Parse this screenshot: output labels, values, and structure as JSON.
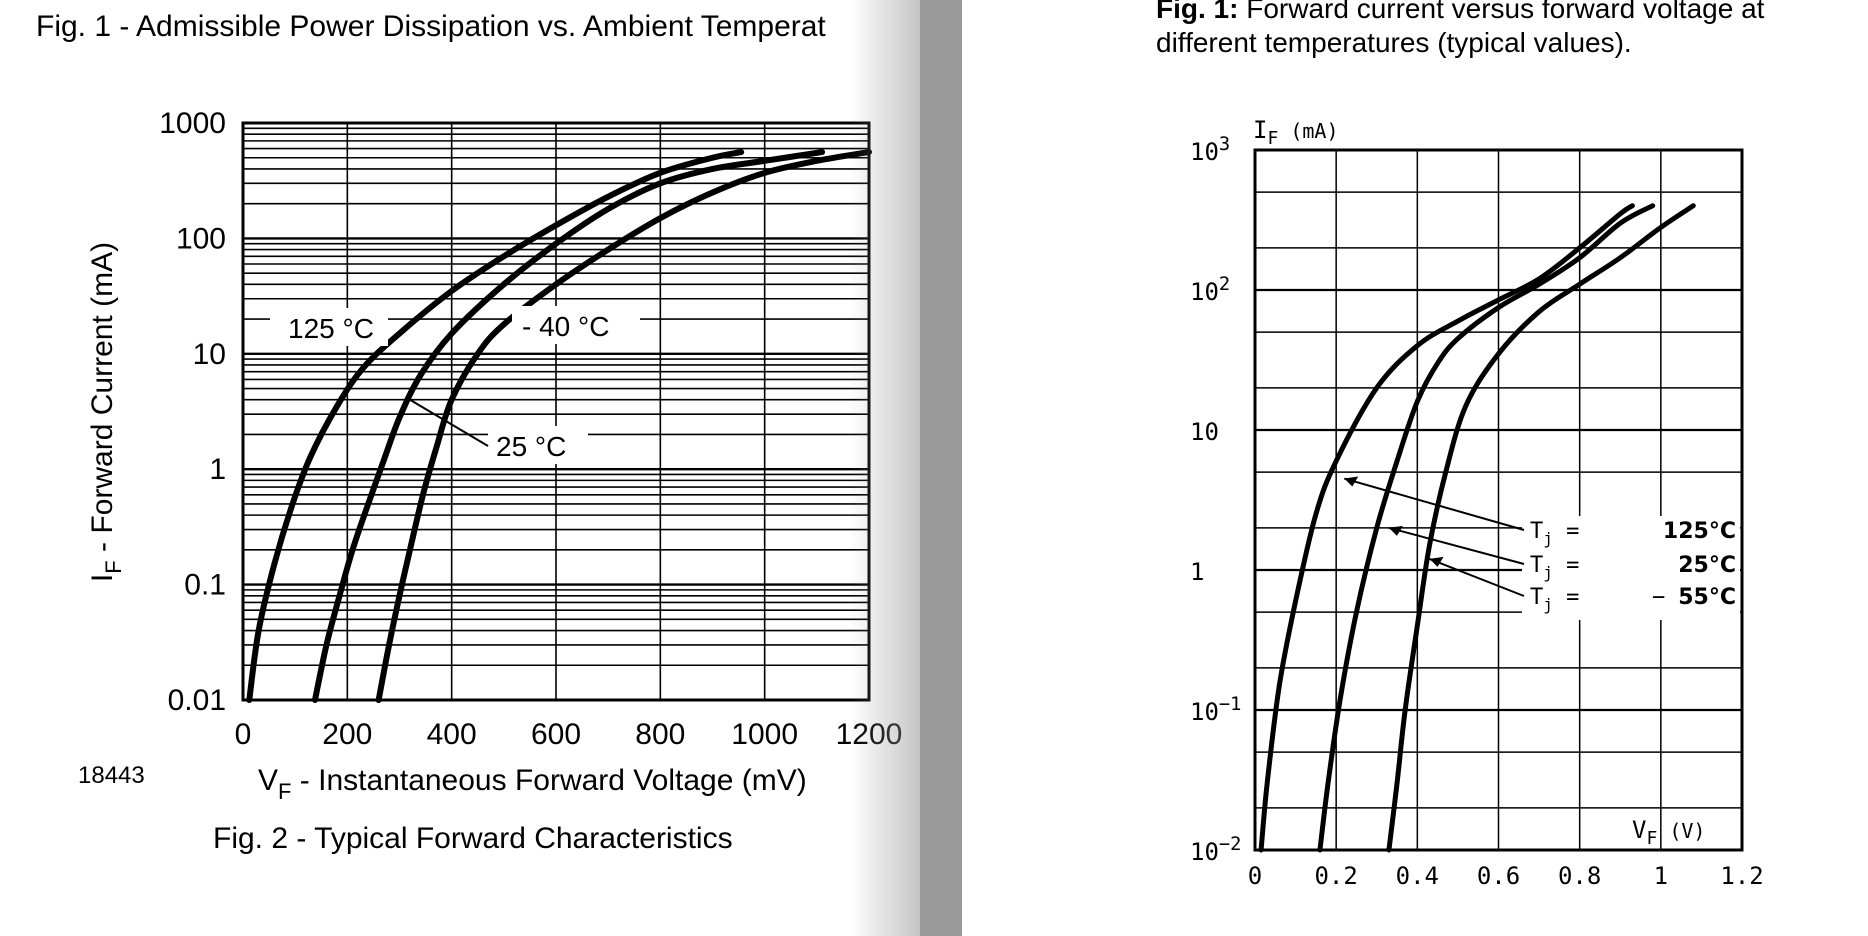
{
  "left_page": {
    "fig1_caption": "Fig. 1 - Admissible Power Dissipation vs. Ambient Temperat",
    "doc_number": "18443",
    "fig2_caption": "Fig. 2 - Typical Forward Characteristics"
  },
  "right_page": {
    "caption_bold": "Fig. 1:",
    "caption_line1": " Forward current versus forward voltage at",
    "caption_line2": "different temperatures (typical values)."
  },
  "chart_data": [
    {
      "type": "line",
      "title": "",
      "xlabel": "VF - Instantaneous Forward Voltage (mV)",
      "xlabel_main": "V",
      "xlabel_sub": "F",
      "xlabel_rest": " - Instantaneous Forward Voltage (mV)",
      "ylabel": "IF - Forward Current (mA)",
      "ylabel_main": "I",
      "ylabel_sub": "F",
      "ylabel_rest": " - Forward Current (mA)",
      "xlim": [
        0,
        1200
      ],
      "ylim": [
        0.01,
        1000
      ],
      "y_scale": "log",
      "grid": true,
      "x_ticks": [
        "0",
        "200",
        "400",
        "600",
        "800",
        "1000",
        "1200"
      ],
      "y_ticks": [
        "0.01",
        "0.1",
        "1",
        "10",
        "100",
        "1000"
      ],
      "series": [
        {
          "name": "125 °C",
          "x": [
            12,
            30,
            60,
            95,
            130,
            180,
            230,
            300,
            400,
            500,
            600,
            700,
            800,
            900,
            955
          ],
          "y": [
            0.01,
            0.04,
            0.15,
            0.5,
            1.3,
            3.5,
            7.5,
            15,
            35,
            70,
            130,
            230,
            370,
            500,
            560
          ]
        },
        {
          "name": "25 °C",
          "x": [
            138,
            160,
            185,
            210,
            240,
            270,
            300,
            340,
            400,
            500,
            600,
            700,
            800,
            900,
            1000,
            1110
          ],
          "y": [
            0.01,
            0.03,
            0.08,
            0.2,
            0.5,
            1.2,
            2.8,
            6.5,
            15,
            40,
            90,
            180,
            300,
            400,
            470,
            560
          ]
        },
        {
          "name": "- 40 °C",
          "x": [
            260,
            280,
            300,
            320,
            345,
            370,
            400,
            450,
            500,
            600,
            700,
            800,
            900,
            1000,
            1100,
            1200
          ],
          "y": [
            0.01,
            0.03,
            0.08,
            0.2,
            0.6,
            1.5,
            4,
            10,
            18,
            40,
            80,
            150,
            250,
            370,
            470,
            560
          ]
        }
      ],
      "annotations": [
        "125 °C",
        "25 °C",
        "- 40 °C"
      ]
    },
    {
      "type": "line",
      "title": "",
      "xlabel": "VF (V)",
      "xlabel_main": "V",
      "xlabel_sub": "F",
      "xlabel_rest": "  (V)",
      "ylabel": "IF (mA)",
      "ylabel_main": "I",
      "ylabel_sub": "F",
      "ylabel_rest": "  (mA)",
      "xlim": [
        0,
        1.2
      ],
      "ylim": [
        0.01,
        1000
      ],
      "y_scale": "log",
      "grid": true,
      "x_ticks": [
        "0",
        "0.2",
        "0.4",
        "0.6",
        "0.8",
        "1",
        "1.2"
      ],
      "y_ticks": [
        {
          "base": "10",
          "exp": "−2"
        },
        {
          "base": "10",
          "exp": "−1"
        },
        {
          "base": "1",
          "exp": ""
        },
        {
          "base": "10",
          "exp": ""
        },
        {
          "base": "10",
          "exp": "2"
        },
        {
          "base": "10",
          "exp": "3"
        }
      ],
      "series": [
        {
          "name": "Tj = 125°C",
          "x": [
            0.015,
            0.03,
            0.06,
            0.1,
            0.15,
            0.2,
            0.3,
            0.4,
            0.5,
            0.6,
            0.7,
            0.8,
            0.9,
            0.93
          ],
          "y": [
            0.01,
            0.03,
            0.15,
            0.6,
            2.5,
            6,
            20,
            40,
            60,
            85,
            120,
            200,
            350,
            400
          ]
        },
        {
          "name": "Tj = 25°C",
          "x": [
            0.16,
            0.18,
            0.21,
            0.25,
            0.3,
            0.35,
            0.4,
            0.45,
            0.5,
            0.6,
            0.7,
            0.8,
            0.9,
            0.98
          ],
          "y": [
            0.01,
            0.03,
            0.12,
            0.5,
            2,
            6,
            16,
            30,
            45,
            75,
            110,
            170,
            300,
            400
          ]
        },
        {
          "name": "Tj = − 55°C",
          "x": [
            0.33,
            0.35,
            0.37,
            0.4,
            0.43,
            0.47,
            0.52,
            0.6,
            0.7,
            0.8,
            0.9,
            1.0,
            1.08
          ],
          "y": [
            0.01,
            0.03,
            0.1,
            0.4,
            1.5,
            5,
            15,
            35,
            70,
            110,
            170,
            280,
            400
          ]
        }
      ],
      "legend": [
        {
          "sym": "T",
          "sub": "j",
          "eq": " =",
          "sign": "",
          "value": "125°C"
        },
        {
          "sym": "T",
          "sub": "j",
          "eq": " =",
          "sign": "",
          "value": "25°C"
        },
        {
          "sym": "T",
          "sub": "j",
          "eq": " =",
          "sign": "−",
          "value": "55°C"
        }
      ]
    }
  ]
}
